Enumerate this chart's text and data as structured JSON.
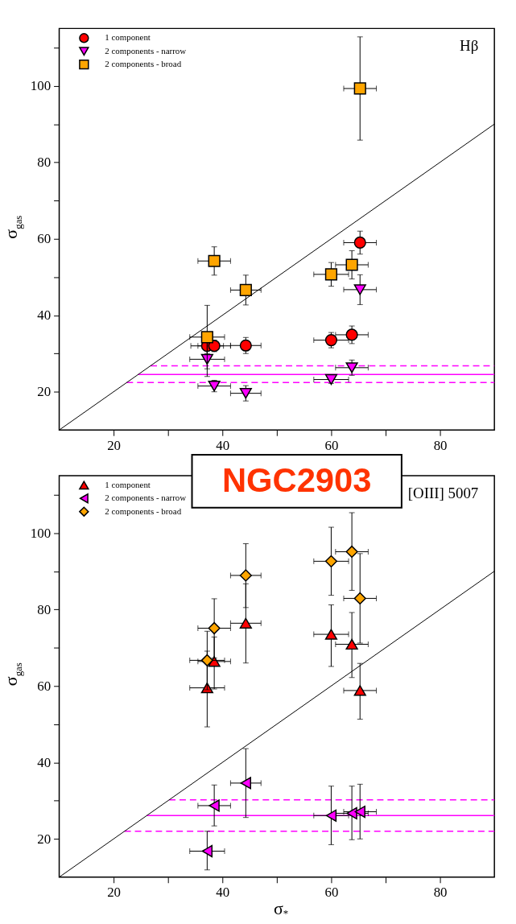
{
  "chart_data": [
    {
      "type": "scatter",
      "ylabel": "σ$_{gas}$",
      "xlim": [
        10,
        90
      ],
      "ylim": [
        10,
        115
      ],
      "xticks": [
        20,
        {
          "value": 30,
          "label": null
        },
        40,
        {
          "value": 50,
          "label": null
        },
        60,
        {
          "value": 70,
          "label": null
        },
        80
      ],
      "yticks": [
        20,
        {
          "value": 30,
          "label": null
        },
        40,
        {
          "value": 50,
          "label": null
        },
        60,
        {
          "value": 70,
          "label": null
        },
        80,
        {
          "value": 90,
          "label": null
        },
        100,
        {
          "value": 110,
          "label": null
        }
      ],
      "grid": false,
      "legend": "top left",
      "annotations": [
        "Hβ"
      ],
      "ref_lines": [
        {
          "axis": "y",
          "value": 24.5,
          "color": "#ff00ff",
          "line_style": "solid"
        },
        {
          "axis": "y",
          "value": 26.8,
          "color": "#ff00ff",
          "line_style": "dashed"
        },
        {
          "axis": "y",
          "value": 22.4,
          "color": "#ff00ff",
          "line_style": "dashed"
        }
      ],
      "series": [
        {
          "type": "line",
          "color": "#000000",
          "x": [
            10,
            90
          ],
          "values": [
            10,
            90
          ],
          "marker": "none"
        },
        {
          "name": "1 component",
          "color": "#ff0000",
          "marker": "circle",
          "x": [
            65.3,
            37.2,
            38.5,
            44.3,
            60.0,
            63.8
          ],
          "values": [
            59.0,
            32.0,
            32.0,
            32.1,
            33.5,
            34.9
          ],
          "errors": [
            3,
            2,
            1.5,
            2.1,
            2,
            2.3
          ],
          "xerrors": [
            3,
            3,
            3,
            2.8,
            3.2,
            3
          ]
        },
        {
          "name": "2 components - narrow",
          "color": "#ff00ff",
          "marker": "triangle-down",
          "x": [
            65.3,
            37.2,
            38.5,
            44.3,
            60.0,
            63.8
          ],
          "values": [
            46.7,
            28.5,
            21.5,
            19.6,
            23.2,
            26.3
          ],
          "errors": [
            3.9,
            4.5,
            1.5,
            2,
            1,
            2
          ],
          "xerrors": [
            3,
            3.2,
            3,
            2.8,
            3.2,
            3
          ]
        },
        {
          "name": "2 components - broad",
          "color": "#ffa500",
          "marker": "square",
          "x": [
            65.3,
            38.5,
            44.3,
            37.2,
            60.0,
            63.8
          ],
          "values": [
            99.3,
            54.2,
            46.6,
            34.3,
            50.7,
            53.2
          ],
          "errors": [
            13.5,
            3.7,
            3.9,
            8.3,
            3.1,
            3.7
          ],
          "xerrors": [
            3,
            3,
            2.8,
            3.2,
            3.2,
            3
          ]
        }
      ]
    },
    {
      "type": "scatter",
      "title": "NGC2903",
      "xlabel": "σ$_{*}$",
      "ylabel": "σ$_{gas}$",
      "xlim": [
        10,
        90
      ],
      "ylim": [
        10,
        115
      ],
      "xticks": [
        20,
        {
          "value": 30,
          "label": null
        },
        40,
        {
          "value": 50,
          "label": null
        },
        60,
        {
          "value": 70,
          "label": null
        },
        80
      ],
      "yticks": [
        20,
        {
          "value": 30,
          "label": null
        },
        40,
        {
          "value": 50,
          "label": null
        },
        60,
        {
          "value": 70,
          "label": null
        },
        80,
        {
          "value": 90,
          "label": null
        },
        100,
        {
          "value": 110,
          "label": null
        }
      ],
      "grid": false,
      "legend": "top left",
      "annotations": [
        "[OIII] 5007"
      ],
      "ref_lines": [
        {
          "axis": "y",
          "value": 26.1,
          "color": "#ff00ff",
          "line_style": "solid"
        },
        {
          "axis": "y",
          "value": 30.2,
          "color": "#ff00ff",
          "line_style": "dashed"
        },
        {
          "axis": "y",
          "value": 22.0,
          "color": "#ff00ff",
          "line_style": "dashed"
        }
      ],
      "series": [
        {
          "type": "line",
          "color": "#000000",
          "x": [
            10,
            90
          ],
          "values": [
            10,
            90
          ],
          "marker": "none"
        },
        {
          "name": "1 component",
          "color": "#ff0000",
          "marker": "triangle",
          "x": [
            44.3,
            60.0,
            63.8,
            38.5,
            37.2,
            65.3
          ],
          "values": [
            76.4,
            73.5,
            70.9,
            66.4,
            59.5,
            58.8
          ],
          "errors": [
            [
              66.0,
              86.7
            ],
            [
              65.1,
              81.2
            ],
            [
              62.2,
              79.2
            ],
            [
              59.2,
              72.8
            ],
            [
              49.3,
              69.1
            ],
            [
              51.3,
              65.9
            ]
          ],
          "xerrors": [
            2.8,
            3.2,
            3,
            3,
            3.2,
            3
          ]
        },
        {
          "name": "2 components - narrow",
          "color": "#ff00ff",
          "marker": "triangle-left",
          "x": [
            44.3,
            38.5,
            37.2,
            60.0,
            63.8,
            65.3
          ],
          "values": [
            34.6,
            28.7,
            16.8,
            26.1,
            26.7,
            27.1
          ],
          "errors": [
            [
              25.6,
              43.6
            ],
            [
              23.4,
              34.1
            ],
            [
              11.9,
              22.0
            ],
            [
              18.5,
              33.8
            ],
            [
              19.8,
              33.8
            ],
            [
              20.0,
              34.3
            ]
          ],
          "xerrors": [
            2.8,
            3,
            3.2,
            3.2,
            3,
            3
          ]
        },
        {
          "name": "2 components - broad",
          "color": "#ffa500",
          "marker": "diamond",
          "x": [
            38.5,
            44.3,
            37.2,
            60.0,
            63.8,
            65.3
          ],
          "values": [
            75.1,
            88.9,
            66.7,
            92.6,
            95.1,
            82.9
          ],
          "errors": [
            [
              67.3,
              82.8
            ],
            [
              80.5,
              97.2
            ],
            [
              59.0,
              74.3
            ],
            [
              83.7,
              101.5
            ],
            [
              85.0,
              105.3
            ],
            [
              71.2,
              94.6
            ]
          ],
          "xerrors": [
            3,
            2.8,
            3.2,
            3.2,
            3,
            3
          ]
        }
      ]
    }
  ]
}
